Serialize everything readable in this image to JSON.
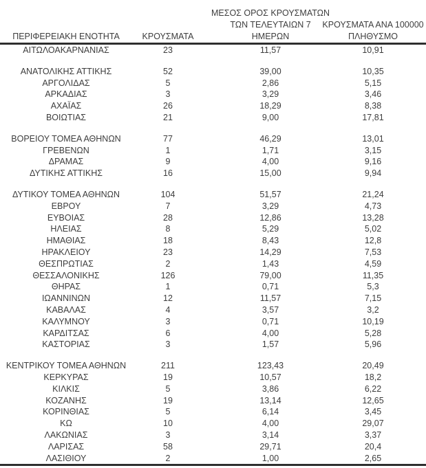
{
  "table": {
    "headers": {
      "region": "ΠΕΡΙΦΕΡΕΙΑΚΗ ΕΝΟΤΗΤΑ",
      "cases": "ΚΡΟΥΣΜΑΤΑ",
      "avg7_lines": [
        "ΜΕΣΟΣ ΟΡΟΣ ΚΡΟΥΣΜΑΤΩΝ",
        "ΤΩΝ ΤΕΛΕΥΤΑΙΩΝ 7",
        "ΗΜΕΡΩΝ"
      ],
      "per100k_lines": [
        "ΚΡΟΥΣΜΑΤΑ ΑΝΑ 100000",
        "ΠΛΗΘΥΣΜΟ"
      ]
    },
    "rows": [
      {
        "region": "ΑΙΤΩΛΟΑΚΑΡΝΑΝΙΑΣ",
        "cases": "23",
        "avg7": "11,57",
        "per100k": "10,91",
        "gap_before": false
      },
      {
        "region": "ΑΝΑΤΟΛΙΚΗΣ ΑΤΤΙΚΗΣ",
        "cases": "52",
        "avg7": "39,00",
        "per100k": "10,35",
        "gap_before": true
      },
      {
        "region": "ΑΡΓΟΛΙΔΑΣ",
        "cases": "5",
        "avg7": "2,86",
        "per100k": "5,15",
        "gap_before": false
      },
      {
        "region": "ΑΡΚΑΔΙΑΣ",
        "cases": "3",
        "avg7": "3,29",
        "per100k": "3,46",
        "gap_before": false
      },
      {
        "region": "ΑΧΑΪΑΣ",
        "cases": "26",
        "avg7": "18,29",
        "per100k": "8,38",
        "gap_before": false
      },
      {
        "region": "ΒΟΙΩΤΙΑΣ",
        "cases": "21",
        "avg7": "9,00",
        "per100k": "17,81",
        "gap_before": false
      },
      {
        "region": "ΒΟΡΕΙΟΥ ΤΟΜΕΑ ΑΘΗΝΩΝ",
        "cases": "77",
        "avg7": "46,29",
        "per100k": "13,01",
        "gap_before": true
      },
      {
        "region": "ΓΡΕΒΕΝΩΝ",
        "cases": "1",
        "avg7": "1,71",
        "per100k": "3,15",
        "gap_before": false
      },
      {
        "region": "ΔΡΑΜΑΣ",
        "cases": "9",
        "avg7": "4,00",
        "per100k": "9,16",
        "gap_before": false
      },
      {
        "region": "ΔΥΤΙΚΗΣ ΑΤΤΙΚΗΣ",
        "cases": "16",
        "avg7": "15,00",
        "per100k": "9,94",
        "gap_before": false
      },
      {
        "region": "ΔΥΤΙΚΟΥ ΤΟΜΕΑ ΑΘΗΝΩΝ",
        "cases": "104",
        "avg7": "51,57",
        "per100k": "21,24",
        "gap_before": true
      },
      {
        "region": "ΕΒΡΟΥ",
        "cases": "7",
        "avg7": "3,29",
        "per100k": "4,73",
        "gap_before": false
      },
      {
        "region": "ΕΥΒΟΙΑΣ",
        "cases": "28",
        "avg7": "12,86",
        "per100k": "13,28",
        "gap_before": false
      },
      {
        "region": "ΗΛΕΙΑΣ",
        "cases": "8",
        "avg7": "5,29",
        "per100k": "5,02",
        "gap_before": false
      },
      {
        "region": "ΗΜΑΘΙΑΣ",
        "cases": "18",
        "avg7": "8,43",
        "per100k": "12,8",
        "gap_before": false
      },
      {
        "region": "ΗΡΑΚΛΕΙΟΥ",
        "cases": "23",
        "avg7": "14,29",
        "per100k": "7,53",
        "gap_before": false
      },
      {
        "region": "ΘΕΣΠΡΩΤΙΑΣ",
        "cases": "2",
        "avg7": "1,43",
        "per100k": "4,59",
        "gap_before": false
      },
      {
        "region": "ΘΕΣΣΑΛΟΝΙΚΗΣ",
        "cases": "126",
        "avg7": "79,00",
        "per100k": "11,35",
        "gap_before": false
      },
      {
        "region": "ΘΗΡΑΣ",
        "cases": "1",
        "avg7": "0,71",
        "per100k": "5,3",
        "gap_before": false
      },
      {
        "region": "ΙΩΑΝΝΙΝΩΝ",
        "cases": "12",
        "avg7": "11,57",
        "per100k": "7,15",
        "gap_before": false
      },
      {
        "region": "ΚΑΒΑΛΑΣ",
        "cases": "4",
        "avg7": "3,57",
        "per100k": "3,2",
        "gap_before": false
      },
      {
        "region": "ΚΑΛΥΜΝΟΥ",
        "cases": "3",
        "avg7": "0,71",
        "per100k": "10,19",
        "gap_before": false
      },
      {
        "region": "ΚΑΡΔΙΤΣΑΣ",
        "cases": "6",
        "avg7": "4,00",
        "per100k": "5,28",
        "gap_before": false
      },
      {
        "region": "ΚΑΣΤΟΡΙΑΣ",
        "cases": "3",
        "avg7": "1,57",
        "per100k": "5,96",
        "gap_before": false
      },
      {
        "region": "ΚΕΝΤΡΙΚΟΥ ΤΟΜΕΑ ΑΘΗΝΩΝ",
        "cases": "211",
        "avg7": "123,43",
        "per100k": "20,49",
        "gap_before": true
      },
      {
        "region": "ΚΕΡΚΥΡΑΣ",
        "cases": "19",
        "avg7": "10,57",
        "per100k": "18,2",
        "gap_before": false
      },
      {
        "region": "ΚΙΛΚΙΣ",
        "cases": "5",
        "avg7": "3,86",
        "per100k": "6,22",
        "gap_before": false
      },
      {
        "region": "ΚΟΖΑΝΗΣ",
        "cases": "19",
        "avg7": "13,14",
        "per100k": "12,65",
        "gap_before": false
      },
      {
        "region": "ΚΟΡΙΝΘΙΑΣ",
        "cases": "5",
        "avg7": "6,14",
        "per100k": "3,45",
        "gap_before": false
      },
      {
        "region": "ΚΩ",
        "cases": "10",
        "avg7": "4,00",
        "per100k": "29,07",
        "gap_before": false
      },
      {
        "region": "ΛΑΚΩΝΙΑΣ",
        "cases": "3",
        "avg7": "3,14",
        "per100k": "3,37",
        "gap_before": false
      },
      {
        "region": "ΛΑΡΙΣΑΣ",
        "cases": "58",
        "avg7": "29,71",
        "per100k": "20,4",
        "gap_before": false
      },
      {
        "region": "ΛΑΣΙΘΙΟΥ",
        "cases": "2",
        "avg7": "1,00",
        "per100k": "2,65",
        "gap_before": false
      }
    ]
  },
  "colors": {
    "text": "#3d3d3d",
    "rule": "#2e2e2e",
    "background": "#ffffff"
  }
}
